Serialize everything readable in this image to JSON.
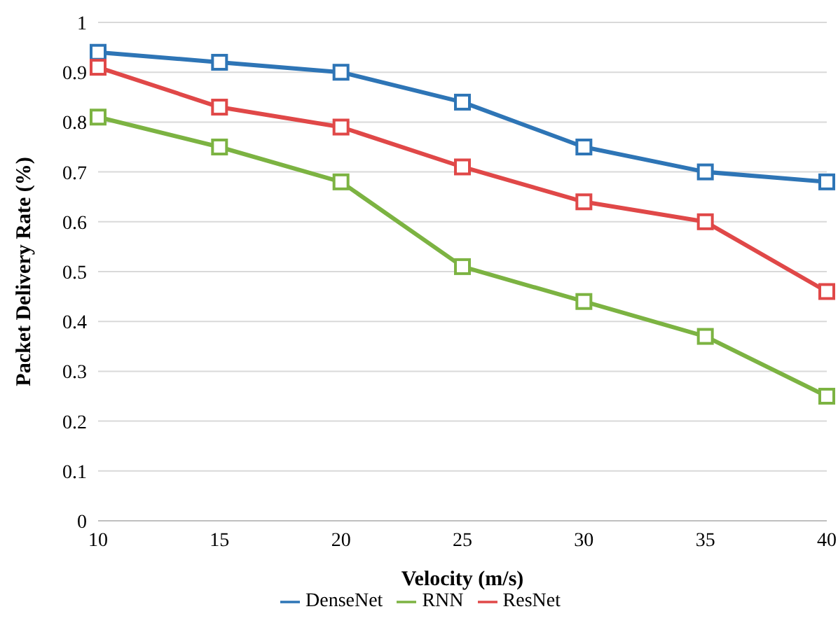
{
  "chart_data": {
    "type": "line",
    "xlabel": "Velocity (m/s)",
    "ylabel": "Packet Delivery Rate (%)",
    "categories": [
      "10",
      "15",
      "20",
      "25",
      "30",
      "35",
      "40"
    ],
    "series": [
      {
        "name": "DenseNet",
        "color": "#2e75b6",
        "values": [
          0.94,
          0.92,
          0.9,
          0.84,
          0.75,
          0.7,
          0.68
        ]
      },
      {
        "name": "ResNet",
        "color": "#e04848",
        "values": [
          0.91,
          0.83,
          0.79,
          0.71,
          0.64,
          0.6,
          0.46
        ]
      },
      {
        "name": "RNN",
        "color": "#7cb342",
        "values": [
          0.81,
          0.75,
          0.68,
          0.51,
          0.44,
          0.37,
          0.25
        ]
      }
    ],
    "ylim": [
      0,
      1
    ],
    "yticks": [
      0,
      0.1,
      0.2,
      0.3,
      0.4,
      0.5,
      0.6,
      0.7,
      0.8,
      0.9,
      1
    ],
    "grid": "y",
    "legend": "bottom",
    "marker": "square",
    "line_style": "solid"
  }
}
